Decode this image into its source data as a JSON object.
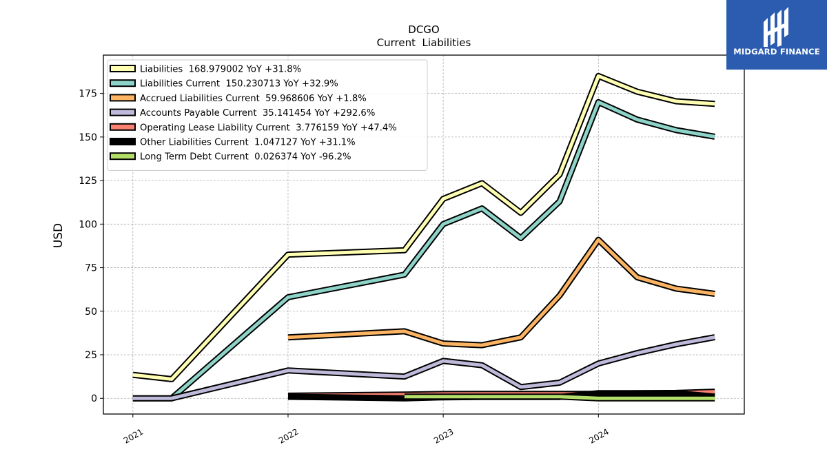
{
  "brand": {
    "name": "MIDGARD FINANCE",
    "logo_bg": "#2b5cb0"
  },
  "chart_data": {
    "type": "line",
    "title": "DCGO",
    "subtitle": "Current  Liabilities",
    "xlabel": "",
    "ylabel": "USD",
    "ylim": [
      -9,
      197
    ],
    "xlim": [
      2020.81,
      2024.94
    ],
    "x_ticks": [
      2021,
      2022,
      2023,
      2024
    ],
    "x_tick_labels": [
      "2021",
      "2022",
      "2023",
      "2024"
    ],
    "y_ticks": [
      0,
      25,
      50,
      75,
      100,
      125,
      150,
      175
    ],
    "y_tick_labels": [
      "0",
      "25",
      "50",
      "75",
      "100",
      "125",
      "150",
      "175"
    ],
    "grid": true,
    "legend_position": "top-left",
    "series": [
      {
        "name": "Liabilities  168.979002 YoY +31.8%",
        "color": "#ffffb3",
        "x": [
          2021.0,
          2021.25,
          2022.0,
          2022.75,
          2023.0,
          2023.25,
          2023.5,
          2023.75,
          2024.0,
          2024.25,
          2024.5,
          2024.75
        ],
        "y": [
          13.5,
          11.0,
          82.5,
          85.0,
          114.5,
          123.5,
          106.5,
          128.5,
          185.0,
          176.0,
          170.5,
          169.0
        ]
      },
      {
        "name": "Liabilities Current  150.230713 YoY +32.9%",
        "color": "#8dd3c7",
        "x": [
          2021.0,
          2021.25,
          2022.0,
          2022.75,
          2023.0,
          2023.25,
          2023.5,
          2023.75,
          2024.0,
          2024.25,
          2024.5,
          2024.75
        ],
        "y": [
          0.0,
          0.0,
          58.0,
          71.0,
          100.0,
          109.0,
          92.0,
          113.0,
          170.0,
          160.0,
          154.0,
          150.2
        ]
      },
      {
        "name": "Accrued Liabilities Current  59.968606 YoY +1.8%",
        "color": "#fdb462",
        "x": [
          2022.0,
          2022.75,
          2023.0,
          2023.25,
          2023.5,
          2023.75,
          2024.0,
          2024.25,
          2024.5,
          2024.75
        ],
        "y": [
          35.0,
          38.5,
          31.5,
          30.5,
          35.0,
          59.0,
          91.0,
          69.5,
          63.0,
          60.0
        ]
      },
      {
        "name": "Accounts Payable Current  35.141454 YoY +292.6%",
        "color": "#bebada",
        "x": [
          2021.0,
          2021.25,
          2022.0,
          2022.75,
          2023.0,
          2023.25,
          2023.5,
          2023.75,
          2024.0,
          2024.25,
          2024.5,
          2024.75
        ],
        "y": [
          0.0,
          0.0,
          16.0,
          12.5,
          21.5,
          19.0,
          6.5,
          9.0,
          20.0,
          26.0,
          31.0,
          35.1
        ]
      },
      {
        "name": "Operating Lease Liability Current  3.776159 YoY +47.4%",
        "color": "#fb8072",
        "x": [
          2022.0,
          2022.75,
          2023.0,
          2023.25,
          2023.5,
          2023.75,
          2024.0,
          2024.25,
          2024.5,
          2024.75
        ],
        "y": [
          1.5,
          2.2,
          2.5,
          2.6,
          2.6,
          2.6,
          2.6,
          2.9,
          3.1,
          3.8
        ]
      },
      {
        "name": "Other Liabilities Current  1.047127 YoY +31.1%",
        "color": "#000000",
        "x": [
          2022.0,
          2022.75,
          2023.0,
          2023.25,
          2023.5,
          2023.75,
          2024.0,
          2024.25,
          2024.5,
          2024.75
        ],
        "y": [
          0.9,
          0.0,
          0.6,
          0.8,
          0.8,
          0.8,
          3.0,
          3.0,
          3.0,
          1.0
        ]
      },
      {
        "name": "Long Term Debt Current  0.026374 YoY -96.2%",
        "color": "#b3de69",
        "x": [
          2022.75,
          2023.0,
          2023.25,
          2023.5,
          2023.75,
          2024.0,
          2024.25,
          2024.5,
          2024.75
        ],
        "y": [
          1.0,
          1.0,
          1.0,
          1.0,
          1.0,
          0.0,
          0.0,
          0.0,
          0.0
        ]
      }
    ]
  }
}
